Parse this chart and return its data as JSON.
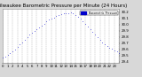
{
  "title": "Milwaukee Barometric Pressure per Minute (24 Hours)",
  "background_color": "#d8d8d8",
  "plot_bg_color": "#ffffff",
  "dot_color": "#0000cc",
  "dot_size": 0.8,
  "grid_color": "#aaaaaa",
  "grid_style": "--",
  "x_tick_labels": [
    "0",
    "1",
    "2",
    "3",
    "4",
    "5",
    "6",
    "7",
    "8",
    "9",
    "10",
    "11",
    "12",
    "13",
    "14",
    "15",
    "16",
    "17",
    "18",
    "19",
    "20",
    "21",
    "22",
    "23"
  ],
  "ylim": [
    29.38,
    30.25
  ],
  "xlim": [
    0,
    1440
  ],
  "pressure_data": [
    [
      0,
      29.47
    ],
    [
      30,
      29.49
    ],
    [
      60,
      29.51
    ],
    [
      90,
      29.54
    ],
    [
      120,
      29.57
    ],
    [
      150,
      29.6
    ],
    [
      180,
      29.64
    ],
    [
      210,
      29.68
    ],
    [
      240,
      29.72
    ],
    [
      270,
      29.76
    ],
    [
      300,
      29.8
    ],
    [
      330,
      29.84
    ],
    [
      360,
      29.87
    ],
    [
      390,
      29.9
    ],
    [
      420,
      29.93
    ],
    [
      450,
      29.96
    ],
    [
      480,
      29.99
    ],
    [
      510,
      30.02
    ],
    [
      540,
      30.05
    ],
    [
      570,
      30.08
    ],
    [
      600,
      30.1
    ],
    [
      630,
      30.12
    ],
    [
      660,
      30.14
    ],
    [
      690,
      30.16
    ],
    [
      720,
      30.17
    ],
    [
      750,
      30.18
    ],
    [
      780,
      30.19
    ],
    [
      810,
      30.19
    ],
    [
      840,
      30.2
    ],
    [
      870,
      30.18
    ],
    [
      900,
      30.16
    ],
    [
      930,
      30.13
    ],
    [
      960,
      30.1
    ],
    [
      990,
      30.06
    ],
    [
      1020,
      30.02
    ],
    [
      1050,
      29.97
    ],
    [
      1080,
      29.93
    ],
    [
      1110,
      29.88
    ],
    [
      1140,
      29.84
    ],
    [
      1170,
      29.8
    ],
    [
      1200,
      29.76
    ],
    [
      1230,
      29.72
    ],
    [
      1260,
      29.68
    ],
    [
      1290,
      29.65
    ],
    [
      1320,
      29.63
    ],
    [
      1350,
      29.61
    ],
    [
      1380,
      29.59
    ],
    [
      1410,
      29.57
    ],
    [
      1440,
      29.54
    ]
  ],
  "ytick_labels": [
    "29.4",
    "29.5",
    "29.6",
    "29.7",
    "29.8",
    "29.9",
    "30.0",
    "30.1",
    "30.2"
  ],
  "ytick_values": [
    29.4,
    29.5,
    29.6,
    29.7,
    29.8,
    29.9,
    30.0,
    30.1,
    30.2
  ],
  "legend_label": "Barometric Pressure",
  "legend_color": "#0000cc",
  "title_fontsize": 4.0,
  "tick_fontsize": 2.8
}
